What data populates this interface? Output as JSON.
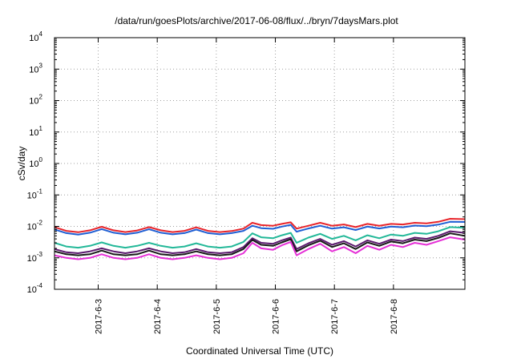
{
  "chart_data": {
    "type": "line",
    "title": "/data/run/goesPlots/archive/2017-06-08/flux/../bryn/7daysMars.plot",
    "xlabel": "Coordinated Universal Time (UTC)",
    "ylabel": "cSv/day",
    "yscale": "log",
    "ylim": [
      0.0001,
      10000
    ],
    "ytick_labels": [
      {
        "base": "10",
        "exp": "4"
      },
      {
        "base": "10",
        "exp": "3"
      },
      {
        "base": "10",
        "exp": "2"
      },
      {
        "base": "10",
        "exp": "1"
      },
      {
        "base": "10",
        "exp": "0"
      },
      {
        "base": "10",
        "exp": "-1"
      },
      {
        "base": "10",
        "exp": "-2"
      },
      {
        "base": "10",
        "exp": "-3"
      },
      {
        "base": "10",
        "exp": "-4"
      }
    ],
    "xlim": [
      2.0,
      8.95
    ],
    "xticks": [
      2.74,
      3.74,
      4.74,
      5.74,
      6.74,
      7.74
    ],
    "xtick_labels": [
      "2017-6-3",
      "2017-6-4",
      "2017-6-5",
      "2017-6-6",
      "2017-6-7",
      "2017-6-8"
    ],
    "grid": true,
    "x": [
      2.0,
      2.2,
      2.4,
      2.6,
      2.8,
      3.0,
      3.2,
      3.4,
      3.6,
      3.8,
      4.0,
      4.2,
      4.4,
      4.6,
      4.8,
      5.0,
      5.2,
      5.35,
      5.5,
      5.7,
      5.85,
      6.0,
      6.1,
      6.3,
      6.5,
      6.7,
      6.9,
      7.1,
      7.3,
      7.5,
      7.7,
      7.9,
      8.1,
      8.3,
      8.5,
      8.7,
      8.95
    ],
    "series": [
      {
        "color": "#e8242a",
        "values": [
          0.0095,
          0.0072,
          0.0065,
          0.0075,
          0.0097,
          0.0075,
          0.0066,
          0.0074,
          0.0095,
          0.0075,
          0.0066,
          0.0072,
          0.0093,
          0.0072,
          0.0066,
          0.0071,
          0.0085,
          0.013,
          0.011,
          0.0105,
          0.012,
          0.0135,
          0.0085,
          0.0105,
          0.013,
          0.0105,
          0.0115,
          0.0095,
          0.012,
          0.0105,
          0.012,
          0.0115,
          0.013,
          0.0125,
          0.014,
          0.0175,
          0.017
        ]
      },
      {
        "color": "#1f5fd4",
        "values": [
          0.008,
          0.0061,
          0.0055,
          0.0063,
          0.0082,
          0.0063,
          0.0056,
          0.0063,
          0.0081,
          0.0063,
          0.0056,
          0.0061,
          0.0079,
          0.0061,
          0.0056,
          0.0061,
          0.0072,
          0.0105,
          0.0088,
          0.0084,
          0.0098,
          0.0112,
          0.0068,
          0.0086,
          0.0105,
          0.0085,
          0.0094,
          0.0077,
          0.0098,
          0.0086,
          0.0098,
          0.0094,
          0.0106,
          0.0102,
          0.0114,
          0.014,
          0.0138
        ]
      },
      {
        "color": "#22b898",
        "values": [
          0.003,
          0.0023,
          0.0021,
          0.0024,
          0.0031,
          0.0024,
          0.0021,
          0.0024,
          0.003,
          0.0024,
          0.0021,
          0.0023,
          0.0029,
          0.0023,
          0.0021,
          0.0023,
          0.0032,
          0.006,
          0.0045,
          0.0042,
          0.0052,
          0.0062,
          0.003,
          0.0044,
          0.0058,
          0.004,
          0.005,
          0.0036,
          0.0052,
          0.0042,
          0.0055,
          0.005,
          0.0062,
          0.0058,
          0.007,
          0.0095,
          0.009
        ]
      },
      {
        "color": "#5b1a6e",
        "values": [
          0.0019,
          0.0015,
          0.0014,
          0.0016,
          0.002,
          0.0016,
          0.0014,
          0.0016,
          0.002,
          0.0016,
          0.0014,
          0.0015,
          0.0019,
          0.0015,
          0.0014,
          0.0015,
          0.0022,
          0.0042,
          0.003,
          0.0028,
          0.0036,
          0.0044,
          0.0019,
          0.0029,
          0.004,
          0.0026,
          0.0034,
          0.0023,
          0.0036,
          0.0028,
          0.0038,
          0.0034,
          0.0044,
          0.004,
          0.005,
          0.007,
          0.0062
        ]
      },
      {
        "color": "#1a1a1a",
        "values": [
          0.0016,
          0.0013,
          0.0012,
          0.0013,
          0.0017,
          0.0013,
          0.0012,
          0.0013,
          0.0017,
          0.0013,
          0.0012,
          0.0013,
          0.0016,
          0.0013,
          0.0012,
          0.0013,
          0.0019,
          0.0037,
          0.0026,
          0.0024,
          0.0031,
          0.0039,
          0.0016,
          0.0025,
          0.0035,
          0.0022,
          0.0029,
          0.0019,
          0.0031,
          0.0024,
          0.0033,
          0.0029,
          0.0038,
          0.0034,
          0.0043,
          0.006,
          0.005
        ]
      },
      {
        "color": "#e52fd6",
        "values": [
          0.0012,
          0.001,
          0.0009,
          0.001,
          0.0013,
          0.001,
          0.0009,
          0.001,
          0.0013,
          0.001,
          0.0009,
          0.001,
          0.0012,
          0.001,
          0.0009,
          0.001,
          0.0014,
          0.003,
          0.002,
          0.0018,
          0.0025,
          0.0032,
          0.0012,
          0.0019,
          0.0028,
          0.0016,
          0.0022,
          0.0014,
          0.0024,
          0.0018,
          0.0026,
          0.0022,
          0.003,
          0.0026,
          0.0034,
          0.0045,
          0.0038
        ]
      }
    ]
  }
}
